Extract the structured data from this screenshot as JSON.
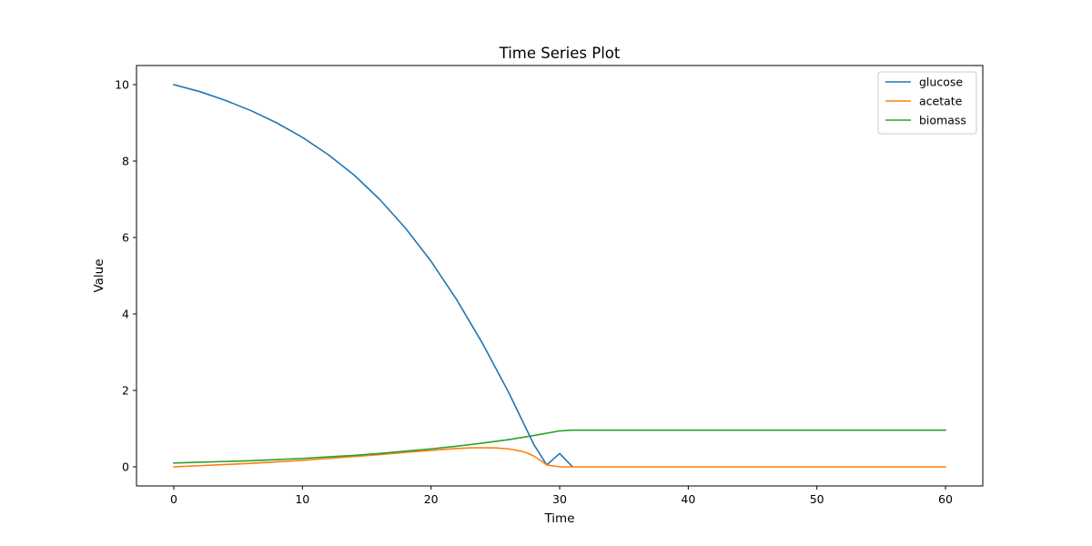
{
  "chart_data": {
    "type": "line",
    "title": "Time Series Plot",
    "xlabel": "Time",
    "ylabel": "Value",
    "xlim": [
      -2.9,
      62.9
    ],
    "ylim": [
      -0.5,
      10.5
    ],
    "xticks": [
      0,
      10,
      20,
      30,
      40,
      50,
      60
    ],
    "yticks": [
      0,
      2,
      4,
      6,
      8,
      10
    ],
    "grid": false,
    "legend": "top-right",
    "series": [
      {
        "name": "glucose",
        "color": "#1f77b4",
        "x": [
          0,
          2,
          4,
          6,
          8,
          10,
          12,
          14,
          16,
          18,
          20,
          22,
          24,
          26,
          28,
          29,
          30,
          31
        ],
        "y": [
          10.0,
          9.82,
          9.59,
          9.32,
          9.0,
          8.62,
          8.17,
          7.64,
          7.0,
          6.25,
          5.38,
          4.37,
          3.23,
          1.97,
          0.58,
          0.05,
          0.35,
          0.0
        ]
      },
      {
        "name": "acetate",
        "color": "#ff7f0e",
        "x": [
          0,
          2,
          4,
          6,
          8,
          10,
          12,
          14,
          16,
          18,
          20,
          22,
          23,
          24,
          25,
          26,
          27,
          27.5,
          28,
          28.5,
          29,
          30,
          31,
          40,
          50,
          60
        ],
        "y": [
          0.0,
          0.03,
          0.06,
          0.09,
          0.13,
          0.17,
          0.22,
          0.27,
          0.32,
          0.38,
          0.43,
          0.48,
          0.495,
          0.5,
          0.495,
          0.47,
          0.41,
          0.36,
          0.28,
          0.17,
          0.05,
          0.0,
          0.0,
          0.0,
          0.0,
          0.0
        ]
      },
      {
        "name": "biomass",
        "color": "#2ca02c",
        "x": [
          0,
          2,
          4,
          6,
          8,
          10,
          12,
          14,
          16,
          18,
          20,
          22,
          24,
          26,
          28,
          29,
          30,
          31,
          35,
          40,
          50,
          60
        ],
        "y": [
          0.1,
          0.12,
          0.14,
          0.16,
          0.19,
          0.22,
          0.26,
          0.3,
          0.35,
          0.41,
          0.47,
          0.54,
          0.62,
          0.71,
          0.82,
          0.88,
          0.94,
          0.96,
          0.96,
          0.96,
          0.96,
          0.96
        ]
      }
    ]
  }
}
